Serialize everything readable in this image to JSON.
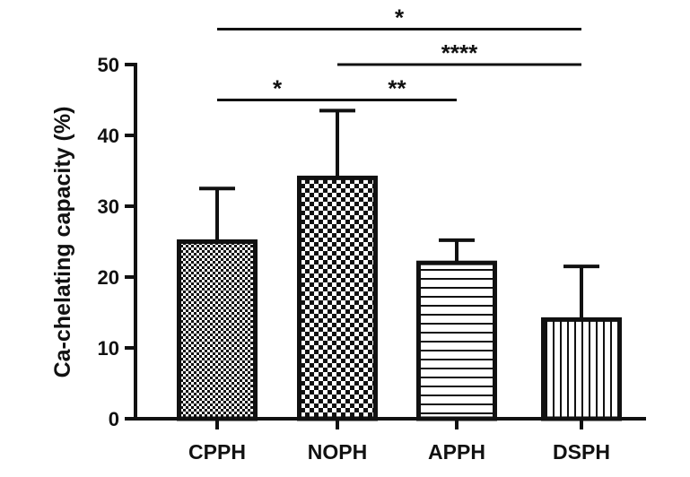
{
  "chart_data": {
    "type": "bar",
    "title": "",
    "xlabel": "",
    "ylabel": "Ca-chelating capacity (%)",
    "ylim": [
      0,
      50
    ],
    "yticks": [
      0,
      10,
      20,
      30,
      40,
      50
    ],
    "yticks_text": [
      "0",
      "10",
      "20",
      "30",
      "40",
      "50"
    ],
    "grid": false,
    "categories": [
      "CPPH",
      "NOPH",
      "APPH",
      "DSPH"
    ],
    "values": [
      25,
      34,
      22,
      14
    ],
    "errors": [
      7.5,
      9.5,
      3.2,
      7.5
    ],
    "patterns": [
      "fine-checker",
      "coarse-checker",
      "horizontal-stripes",
      "vertical-stripes"
    ],
    "significance": [
      {
        "from": 0,
        "to": 3,
        "label": "*",
        "y": 55
      },
      {
        "from": 1,
        "to": 3,
        "label": "****",
        "y": 50
      },
      {
        "from": 0,
        "to": 1,
        "label": "*",
        "y": 45
      },
      {
        "from": 1,
        "to": 2,
        "label": "**",
        "y": 45
      }
    ]
  }
}
